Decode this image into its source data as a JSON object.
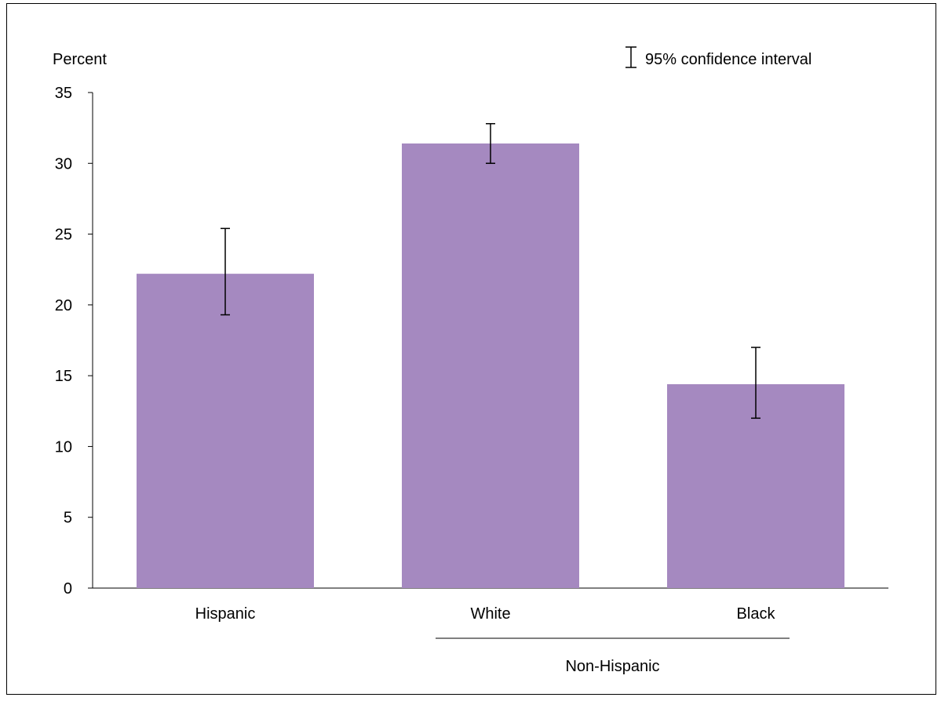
{
  "chart_data": {
    "type": "bar",
    "ylabel": "Percent",
    "xlabel": "",
    "ylim": [
      0,
      35
    ],
    "y_ticks": [
      0,
      5,
      10,
      15,
      20,
      25,
      30,
      35
    ],
    "categories": [
      "Hispanic",
      "White",
      "Black"
    ],
    "values": [
      22.2,
      31.4,
      14.4
    ],
    "ci_lower": [
      19.3,
      30.0,
      12.0
    ],
    "ci_upper": [
      25.4,
      32.8,
      17.0
    ],
    "group_label": "Non-Hispanic",
    "group_members": [
      "White",
      "Black"
    ],
    "legend": {
      "label": "95% confidence interval",
      "position": "top-right"
    },
    "bar_color": "#a589c0",
    "grid": false
  }
}
